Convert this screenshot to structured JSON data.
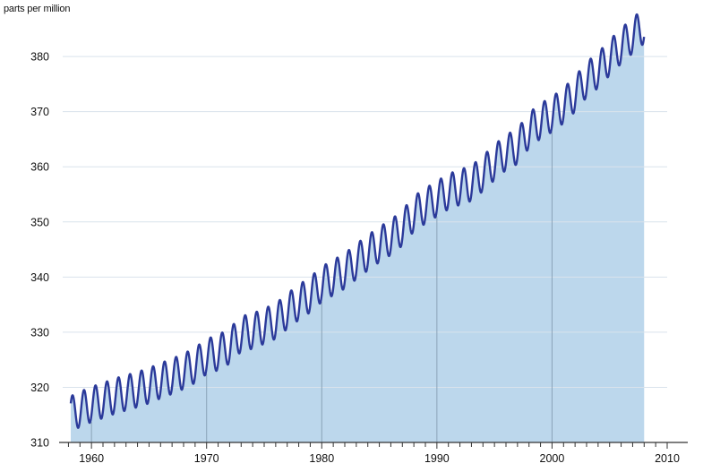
{
  "chart_data": {
    "type": "area",
    "title": "",
    "ylabel": "parts per million",
    "xlabel": "",
    "xlim": [
      1957.5,
      2010
    ],
    "ylim": [
      310,
      387
    ],
    "y_ticks": [
      310,
      320,
      330,
      340,
      350,
      360,
      370,
      380
    ],
    "x_tick_labels": [
      "1960",
      "1970",
      "1980",
      "1990",
      "2000",
      "2010"
    ],
    "x_tick_values": [
      1960,
      1970,
      1980,
      1990,
      2000,
      2010
    ],
    "grid": "horizontal",
    "colors": {
      "line": "#2b3a9a",
      "area": "#bcd7ec",
      "grid": "#ffffff",
      "axis": "#333333"
    },
    "series": [
      {
        "x": [
          1958.2,
          1959,
          1960,
          1961,
          1962,
          1963,
          1964,
          1965,
          1966,
          1967,
          1968,
          1969,
          1970,
          1971,
          1972,
          1973,
          1974,
          1975,
          1976,
          1977,
          1978,
          1979,
          1980,
          1981,
          1982,
          1983,
          1984,
          1985,
          1986,
          1987,
          1988,
          1989,
          1990,
          1991,
          1992,
          1993,
          1994,
          1995,
          1996,
          1997,
          1998,
          1999,
          2000,
          2001,
          2002,
          2003,
          2004,
          2005,
          2006,
          2007,
          2008
        ],
        "y": [
          315.2,
          316.0,
          316.9,
          317.6,
          318.4,
          319.0,
          319.6,
          320.3,
          321.2,
          322.0,
          322.9,
          324.0,
          325.6,
          326.3,
          327.5,
          329.7,
          330.2,
          331.1,
          332.0,
          333.8,
          335.4,
          336.8,
          338.7,
          339.9,
          341.1,
          342.8,
          344.4,
          345.9,
          347.2,
          348.9,
          351.5,
          352.9,
          354.2,
          355.5,
          356.3,
          357.0,
          358.8,
          360.8,
          362.6,
          363.7,
          366.6,
          368.3,
          369.5,
          371.1,
          373.2,
          375.8,
          377.5,
          379.8,
          381.9,
          383.8,
          385.6
        ]
      }
    ],
    "seasonal_amplitude_ppm": 3.2
  }
}
